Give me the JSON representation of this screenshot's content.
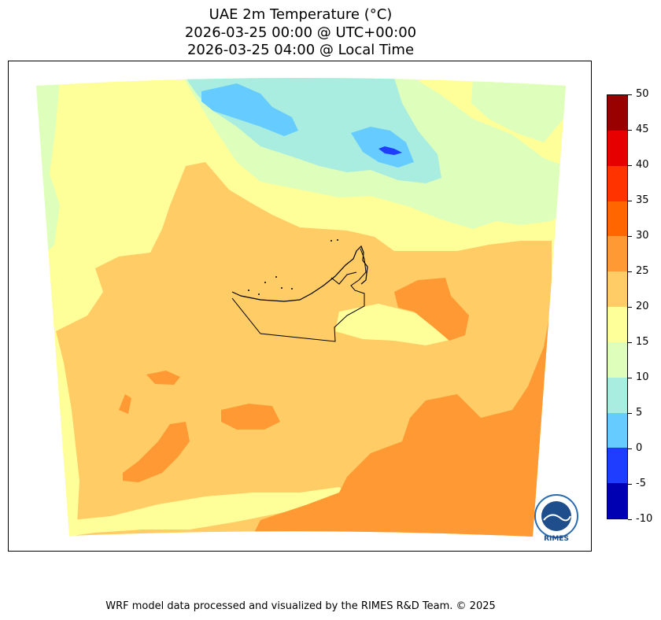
{
  "title": {
    "line1": "UAE 2m Temperature (°C)",
    "line2": "2026-03-25 00:00 @ UTC+00:00",
    "line3": "2026-03-25 04:00 @ Local Time"
  },
  "colorbar": {
    "ticks": [
      "50",
      "45",
      "40",
      "35",
      "30",
      "25",
      "20",
      "15",
      "10",
      "5",
      "0",
      "-5",
      "-10"
    ],
    "bins": [
      {
        "min": 45,
        "max": 50,
        "color": "#990000"
      },
      {
        "min": 40,
        "max": 45,
        "color": "#e60000"
      },
      {
        "min": 35,
        "max": 40,
        "color": "#ff3300"
      },
      {
        "min": 30,
        "max": 35,
        "color": "#ff6600"
      },
      {
        "min": 25,
        "max": 30,
        "color": "#ff9933"
      },
      {
        "min": 20,
        "max": 25,
        "color": "#ffcc66"
      },
      {
        "min": 15,
        "max": 20,
        "color": "#ffff99"
      },
      {
        "min": 10,
        "max": 15,
        "color": "#ddffbb"
      },
      {
        "min": 5,
        "max": 10,
        "color": "#a8ede0"
      },
      {
        "min": 0,
        "max": 5,
        "color": "#66ccff"
      },
      {
        "min": -5,
        "max": 0,
        "color": "#1f3dff"
      },
      {
        "min": -10,
        "max": -5,
        "color": "#0000b3"
      }
    ]
  },
  "logo": {
    "text": "RIMES",
    "ring_text": "Regional Integrated Multi-Hazard Early Warning System"
  },
  "footer": "WRF model data processed and visualized by the RIMES R&D Team. © 2025"
}
